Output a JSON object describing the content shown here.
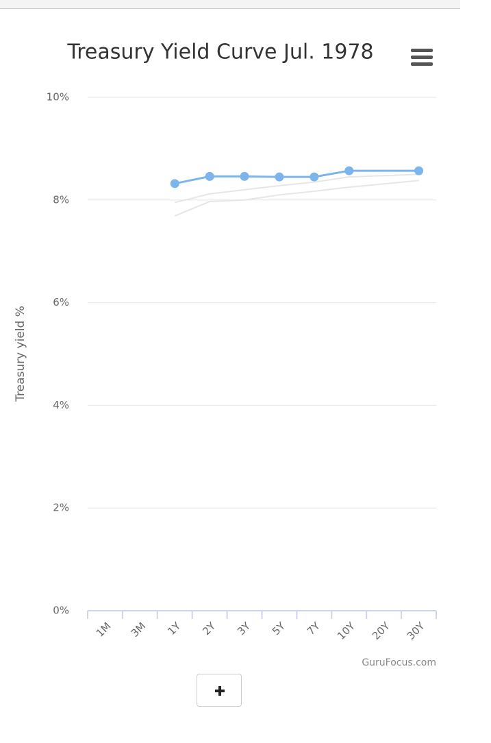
{
  "chart_data": {
    "type": "line",
    "title": "Treasury Yield Curve Jul. 1978",
    "y_label": "Treasury yield %",
    "credit": "GuruFocus.com",
    "categories": [
      "1M",
      "3M",
      "1Y",
      "2Y",
      "3Y",
      "5Y",
      "7Y",
      "10Y",
      "20Y",
      "30Y"
    ],
    "series": [
      {
        "color": "#7cb5ec",
        "values": [
          null,
          null,
          8.32,
          8.46,
          8.46,
          8.45,
          8.45,
          8.57,
          null,
          8.57
        ]
      },
      {
        "color": "#e6e6e6",
        "values": [
          null,
          null,
          7.69,
          7.97,
          8.0,
          8.1,
          8.17,
          8.25,
          null,
          8.38
        ]
      },
      {
        "color": "#e6e6e6",
        "values": [
          null,
          null,
          7.95,
          8.12,
          8.2,
          8.28,
          8.35,
          8.45,
          null,
          8.5
        ]
      }
    ],
    "connect_nulls": true,
    "ylim": [
      0,
      10
    ],
    "yticks": [
      {
        "value": 0,
        "label": "0%"
      },
      {
        "value": 2,
        "label": "2%"
      },
      {
        "value": 4,
        "label": "4%"
      },
      {
        "value": 6,
        "label": "6%"
      },
      {
        "value": 8,
        "label": "8%"
      },
      {
        "value": 10,
        "label": "10%"
      }
    ],
    "grid": true
  }
}
